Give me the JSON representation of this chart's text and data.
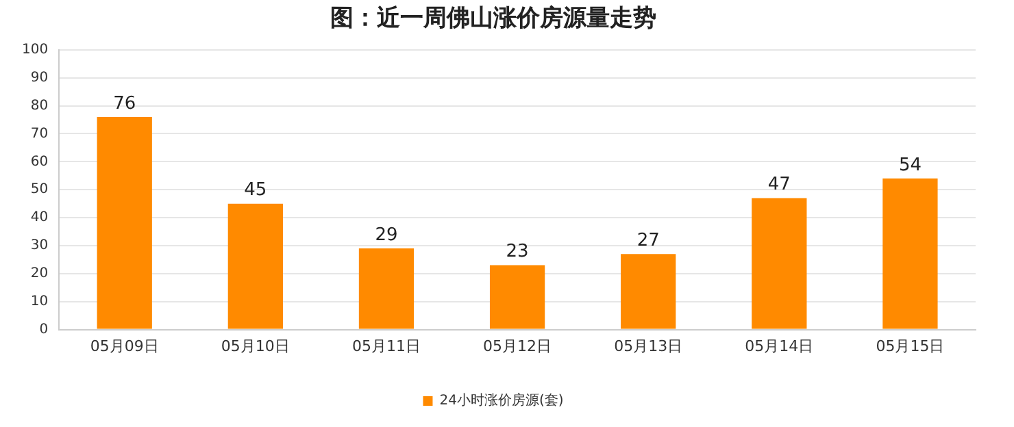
{
  "chart_data": {
    "type": "bar",
    "title": "图：近一周佛山涨价房源量走势",
    "categories": [
      "05月09日",
      "05月10日",
      "05月11日",
      "05月12日",
      "05月13日",
      "05月14日",
      "05月15日"
    ],
    "series": [
      {
        "name": "24小时涨价房源(套)",
        "color": "#ff8a00",
        "values": [
          76,
          45,
          29,
          23,
          27,
          47,
          54
        ]
      }
    ],
    "ylim": [
      0,
      100
    ],
    "yticks": [
      0,
      10,
      20,
      30,
      40,
      50,
      60,
      70,
      80,
      90,
      100
    ],
    "grid": "y",
    "legend": "bottom",
    "data_labels": true
  }
}
